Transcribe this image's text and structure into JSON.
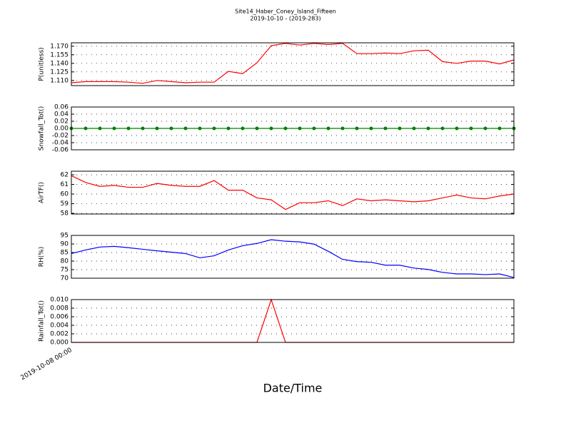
{
  "chart_data": [
    {
      "type": "line",
      "title": "Site14_Haber_Coney_Island_Fifteen",
      "subtitle": "2019-10-10 - (2019-283)",
      "ylabel": "P(unitless)",
      "color": "#ff0000",
      "grid": true,
      "values": [
        1.106,
        1.108,
        1.108,
        1.108,
        1.107,
        1.105,
        1.11,
        1.108,
        1.106,
        1.107,
        1.107,
        1.126,
        1.122,
        1.141,
        1.171,
        1.175,
        1.172,
        1.175,
        1.173,
        1.175,
        1.157,
        1.157,
        1.158,
        1.157,
        1.162,
        1.163,
        1.143,
        1.14,
        1.144,
        1.144,
        1.139,
        1.146
      ],
      "ylim": [
        1.101,
        1.176
      ],
      "yticks": [
        {
          "value": 1.11,
          "label": "1.110"
        },
        1.125,
        {
          "value": 1.14,
          "label": "1.140"
        },
        1.155,
        {
          "value": 1.17,
          "label": "1.170"
        }
      ]
    },
    {
      "type": "line",
      "ylabel": "Snowfall_Tot()",
      "color": "#008000",
      "marker": true,
      "grid": true,
      "values": [
        0,
        0,
        0,
        0,
        0,
        0,
        0,
        0,
        0,
        0,
        0,
        0,
        0,
        0,
        0,
        0,
        0,
        0,
        0,
        0,
        0,
        0,
        0,
        0,
        0,
        0,
        0,
        0,
        0,
        0,
        0,
        0
      ],
      "ylim": [
        -0.06,
        0.06
      ],
      "yticks": [
        -0.06,
        -0.04,
        -0.02,
        {
          "value": 0,
          "label": "0.00"
        },
        0.02,
        0.04,
        0.06
      ]
    },
    {
      "type": "line",
      "ylabel": "AirTF()",
      "color": "#ff0000",
      "grid": true,
      "values": [
        61.9,
        61.2,
        60.8,
        60.9,
        60.7,
        60.7,
        61.1,
        60.9,
        60.8,
        60.8,
        61.4,
        60.4,
        60.4,
        59.6,
        59.4,
        58.4,
        59.1,
        59.1,
        59.3,
        58.8,
        59.5,
        59.3,
        59.4,
        59.3,
        59.2,
        59.3,
        59.6,
        59.9,
        59.6,
        59.5,
        59.8,
        60.0
      ],
      "ylim": [
        57.93,
        62.37
      ],
      "yticks": [
        58,
        59,
        60,
        61,
        62
      ]
    },
    {
      "type": "line",
      "ylabel": "RH(%)",
      "color": "#0000ff",
      "grid": true,
      "values": [
        84.4,
        86.5,
        88.2,
        88.6,
        87.8,
        86.9,
        86,
        85.2,
        84.4,
        81.9,
        83.1,
        86.5,
        89,
        90.3,
        92.5,
        91.6,
        91.2,
        89.9,
        85.7,
        81,
        79.7,
        79.3,
        77.6,
        77.6,
        75.9,
        75.1,
        73.4,
        72.5,
        72.5,
        72.1,
        72.5,
        70.4
      ],
      "ylim": [
        70,
        95
      ],
      "yticks": [
        70,
        75,
        80,
        85,
        90,
        95
      ]
    },
    {
      "type": "line",
      "ylabel": "Rainfall_Tot()",
      "xlabel": "Date/Time",
      "color": "#ff0000",
      "grid": true,
      "categories": [
        "2019-10-08 00:00",
        null,
        null,
        null,
        null,
        null,
        null,
        null,
        null,
        null,
        null,
        null,
        null,
        null,
        null,
        null,
        null,
        null,
        null,
        null,
        null,
        null,
        null,
        null,
        null,
        null,
        null,
        null,
        null,
        null,
        null,
        null
      ],
      "values": [
        0,
        0,
        0,
        0,
        0,
        0,
        0,
        0,
        0,
        0,
        0,
        0,
        0,
        0,
        0.01,
        0,
        0,
        0,
        0,
        0,
        0,
        0,
        0,
        0,
        0,
        0,
        0,
        0,
        0,
        0,
        0,
        0
      ],
      "ylim": [
        0,
        0.01
      ],
      "yticks": [
        {
          "value": 0,
          "label": "0.000"
        },
        0.002,
        0.004,
        0.006,
        0.008,
        {
          "value": 0.01,
          "label": "0.010"
        }
      ]
    }
  ]
}
